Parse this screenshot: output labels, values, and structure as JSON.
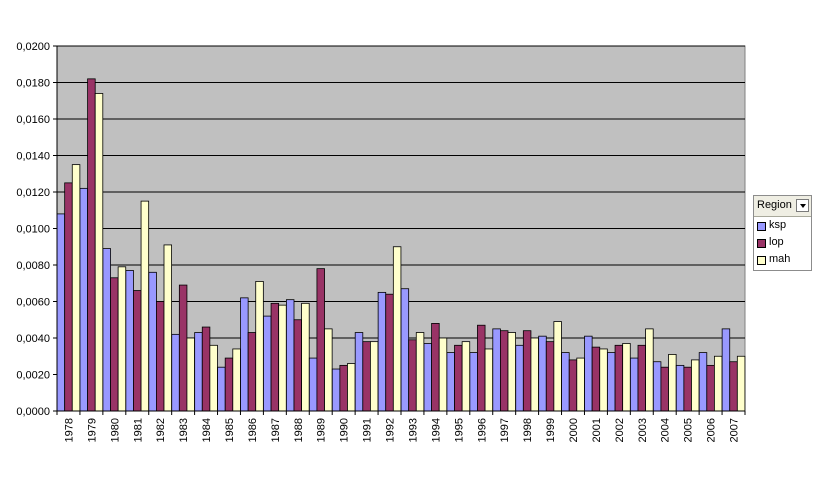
{
  "chart_data": {
    "type": "bar",
    "categories": [
      "1978",
      "1979",
      "1980",
      "1981",
      "1982",
      "1983",
      "1984",
      "1985",
      "1986",
      "1987",
      "1988",
      "1989",
      "1990",
      "1991",
      "1992",
      "1993",
      "1994",
      "1995",
      "1996",
      "1997",
      "1998",
      "1999",
      "2000",
      "2001",
      "2002",
      "2003",
      "2004",
      "2005",
      "2006",
      "2007"
    ],
    "series": [
      {
        "name": "ksp",
        "color": "#9999ff",
        "values": [
          0.0108,
          0.0122,
          0.0089,
          0.0077,
          0.0076,
          0.0042,
          0.0043,
          0.0024,
          0.0062,
          0.0052,
          0.0061,
          0.0029,
          0.0023,
          0.0043,
          0.0065,
          0.0067,
          0.0037,
          0.0032,
          0.0032,
          0.0045,
          0.0036,
          0.0041,
          0.0032,
          0.0041,
          0.0032,
          0.0029,
          0.0027,
          0.0025,
          0.0032,
          0.0045
        ]
      },
      {
        "name": "lop",
        "color": "#993366",
        "values": [
          0.0125,
          0.0182,
          0.0073,
          0.0066,
          0.006,
          0.0069,
          0.0046,
          0.0029,
          0.0043,
          0.0059,
          0.005,
          0.0078,
          0.0025,
          0.0038,
          0.0064,
          0.0039,
          0.0048,
          0.0036,
          0.0047,
          0.0044,
          0.0044,
          0.0038,
          0.0028,
          0.0035,
          0.0036,
          0.0036,
          0.0024,
          0.0024,
          0.0025,
          0.0027
        ]
      },
      {
        "name": "mah",
        "color": "#ffffcc",
        "values": [
          0.0135,
          0.0174,
          0.0079,
          0.0115,
          0.0091,
          0.004,
          0.0036,
          0.0034,
          0.0071,
          0.0058,
          0.0059,
          0.0045,
          0.0026,
          0.0038,
          0.009,
          0.0043,
          0.004,
          0.0038,
          0.0034,
          0.0043,
          0.004,
          0.0049,
          0.0029,
          0.0034,
          0.0037,
          0.0045,
          0.0031,
          0.0028,
          0.003,
          0.003
        ]
      }
    ],
    "yticks": [
      "0,0000",
      "0,0020",
      "0,0040",
      "0,0060",
      "0,0080",
      "0,0100",
      "0,0120",
      "0,0140",
      "0,0160",
      "0,0180",
      "0,0200"
    ],
    "ylim": [
      0,
      0.02
    ],
    "grid": true,
    "plot_background": "#c0c0c0",
    "legend": {
      "title": "Region",
      "placement": "right"
    }
  }
}
